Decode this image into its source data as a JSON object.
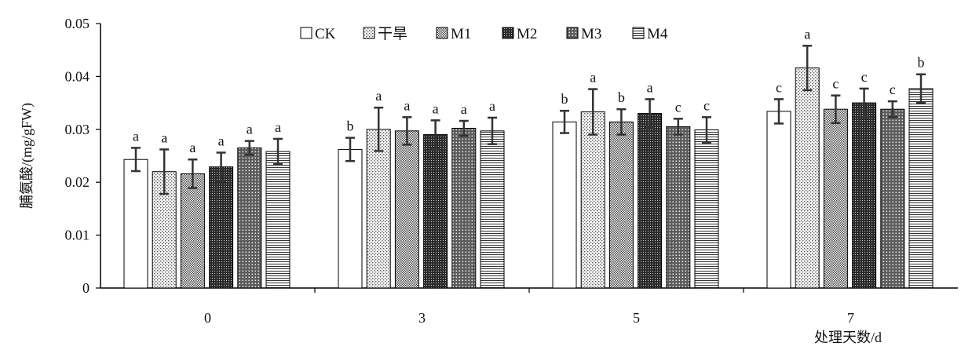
{
  "chart_data": {
    "type": "bar",
    "title": "",
    "ylabel": "脯氨酸/(mg/gFW)",
    "xlabel": "处理天数/d",
    "ylim": [
      0,
      0.05
    ],
    "yticks": [
      "0",
      "0.01",
      "0.02",
      "0.03",
      "0.04",
      "0.05"
    ],
    "categories": [
      "0",
      "3",
      "5",
      "7"
    ],
    "legend_position": "top-center",
    "grid": false,
    "series": [
      {
        "name": "CK",
        "pattern": "blank",
        "values": [
          0.0243,
          0.0262,
          0.0314,
          0.0334
        ],
        "errors": [
          0.0022,
          0.0022,
          0.0021,
          0.0023
        ],
        "labels": [
          "a",
          "b",
          "b",
          "c"
        ]
      },
      {
        "name": "干旱",
        "pattern": "dots",
        "values": [
          0.022,
          0.03,
          0.0333,
          0.0416
        ],
        "errors": [
          0.0042,
          0.0041,
          0.0043,
          0.0042
        ],
        "labels": [
          "a",
          "a",
          "a",
          "a"
        ]
      },
      {
        "name": "M1",
        "pattern": "fine-mesh",
        "values": [
          0.0216,
          0.0297,
          0.0314,
          0.0338
        ],
        "errors": [
          0.0027,
          0.0026,
          0.0024,
          0.0026
        ],
        "labels": [
          "a",
          "a",
          "b",
          "c"
        ]
      },
      {
        "name": "M2",
        "pattern": "dark-mesh",
        "values": [
          0.0229,
          0.029,
          0.033,
          0.035
        ],
        "errors": [
          0.0027,
          0.0027,
          0.0027,
          0.0027
        ],
        "labels": [
          "a",
          "a",
          "a",
          "c"
        ]
      },
      {
        "name": "M3",
        "pattern": "dark-dots",
        "values": [
          0.0265,
          0.0302,
          0.0305,
          0.0338
        ],
        "errors": [
          0.0013,
          0.0014,
          0.0015,
          0.0015
        ],
        "labels": [
          "a",
          "a",
          "c",
          "c"
        ]
      },
      {
        "name": "M4",
        "pattern": "hlines",
        "values": [
          0.0258,
          0.0297,
          0.0299,
          0.0377
        ],
        "errors": [
          0.0024,
          0.0025,
          0.0024,
          0.0027
        ],
        "labels": [
          "a",
          "a",
          "c",
          "b"
        ]
      }
    ]
  }
}
